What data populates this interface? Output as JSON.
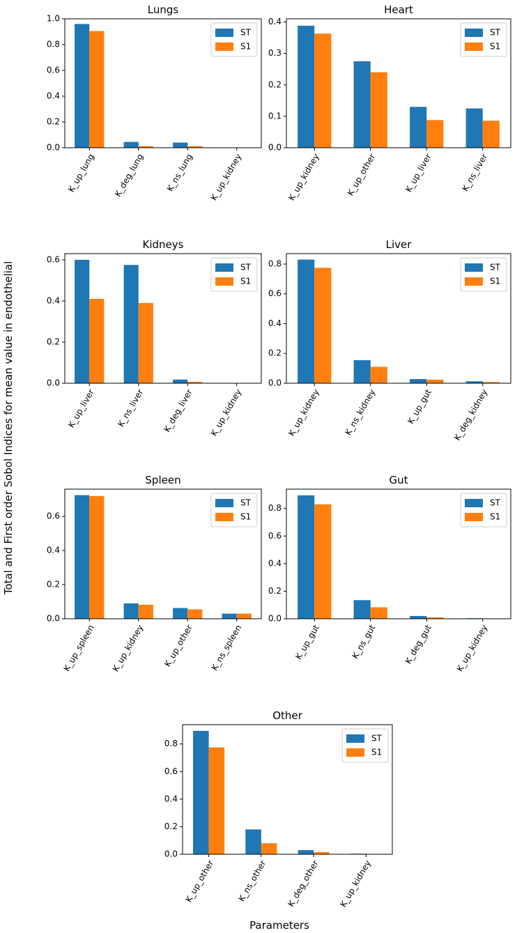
{
  "figure": {
    "ylabel": "Total and First order Sobol Indices for mean value in endothelial",
    "xlabel": "Parameters",
    "colors": {
      "ST": "#1f77b4",
      "S1": "#ff7f0e"
    },
    "legend_labels": [
      "ST",
      "S1"
    ]
  },
  "chart_data": [
    {
      "type": "bar",
      "title": "Lungs",
      "categories": [
        "K_up_lung",
        "K_deg_lung",
        "K_ns_lung",
        "K_up_kidney"
      ],
      "series": [
        {
          "name": "ST",
          "values": [
            0.96,
            0.045,
            0.04,
            0.001
          ]
        },
        {
          "name": "S1",
          "values": [
            0.905,
            0.012,
            0.012,
            0.0
          ]
        }
      ],
      "ylim": [
        0,
        1.0
      ],
      "yticks": [
        "0.0",
        "0.2",
        "0.4",
        "0.6",
        "0.8",
        "1.0"
      ],
      "legend": "top-right"
    },
    {
      "type": "bar",
      "title": "Heart",
      "categories": [
        "K_up_kidney",
        "K_up_other",
        "K_up_liver",
        "K_ns_liver"
      ],
      "series": [
        {
          "name": "ST",
          "values": [
            0.388,
            0.275,
            0.13,
            0.125
          ]
        },
        {
          "name": "S1",
          "values": [
            0.363,
            0.24,
            0.088,
            0.086
          ]
        }
      ],
      "ylim": [
        0,
        0.41
      ],
      "yticks": [
        "0.0",
        "0.1",
        "0.2",
        "0.3",
        "0.4"
      ],
      "legend": "top-right"
    },
    {
      "type": "bar",
      "title": "Kidneys",
      "categories": [
        "K_up_liver",
        "K_ns_liver",
        "K_deg_liver",
        "K_up_kidney"
      ],
      "series": [
        {
          "name": "ST",
          "values": [
            0.6,
            0.575,
            0.018,
            0.001
          ]
        },
        {
          "name": "S1",
          "values": [
            0.41,
            0.39,
            0.007,
            0.0
          ]
        }
      ],
      "ylim": [
        0,
        0.63
      ],
      "yticks": [
        "0.0",
        "0.2",
        "0.4",
        "0.6"
      ],
      "legend": "top-right"
    },
    {
      "type": "bar",
      "title": "Liver",
      "categories": [
        "K_up_kidney",
        "K_ns_kidney",
        "K_up_gut",
        "K_deg_kidney"
      ],
      "series": [
        {
          "name": "ST",
          "values": [
            0.83,
            0.155,
            0.028,
            0.013
          ]
        },
        {
          "name": "S1",
          "values": [
            0.775,
            0.11,
            0.024,
            0.008
          ]
        }
      ],
      "ylim": [
        0,
        0.87
      ],
      "yticks": [
        "0.0",
        "0.2",
        "0.4",
        "0.6",
        "0.8"
      ],
      "legend": "top-right"
    },
    {
      "type": "bar",
      "title": "Spleen",
      "categories": [
        "K_up_spleen",
        "K_up_kidney",
        "K_up_other",
        "K_ns_spleen"
      ],
      "series": [
        {
          "name": "ST",
          "values": [
            0.725,
            0.09,
            0.063,
            0.03
          ]
        },
        {
          "name": "S1",
          "values": [
            0.72,
            0.082,
            0.055,
            0.03
          ]
        }
      ],
      "ylim": [
        0,
        0.76
      ],
      "yticks": [
        "0.0",
        "0.2",
        "0.4",
        "0.6"
      ],
      "legend": "top-right"
    },
    {
      "type": "bar",
      "title": "Gut",
      "categories": [
        "K_up_gut",
        "K_ns_gut",
        "K_deg_gut",
        "K_up_kidney"
      ],
      "series": [
        {
          "name": "ST",
          "values": [
            0.895,
            0.135,
            0.02,
            0.004
          ]
        },
        {
          "name": "S1",
          "values": [
            0.83,
            0.083,
            0.01,
            0.001
          ]
        }
      ],
      "ylim": [
        0,
        0.94
      ],
      "yticks": [
        "0.0",
        "0.2",
        "0.4",
        "0.6",
        "0.8"
      ],
      "legend": "top-right"
    },
    {
      "type": "bar",
      "title": "Other",
      "categories": [
        "K_up_other",
        "K_ns_other",
        "K_deg_other",
        "K_up_kidney"
      ],
      "series": [
        {
          "name": "ST",
          "values": [
            0.895,
            0.18,
            0.03,
            0.004
          ]
        },
        {
          "name": "S1",
          "values": [
            0.775,
            0.08,
            0.015,
            0.001
          ]
        }
      ],
      "ylim": [
        0,
        0.94
      ],
      "yticks": [
        "0.0",
        "0.2",
        "0.4",
        "0.6",
        "0.8"
      ],
      "legend": "top-right"
    }
  ]
}
